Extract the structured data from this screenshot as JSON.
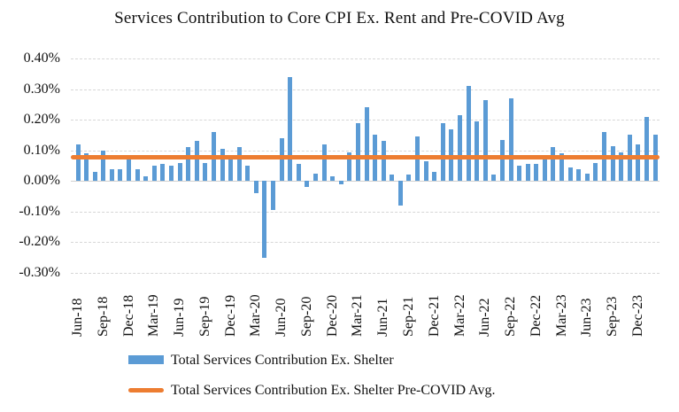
{
  "chart_data": {
    "type": "bar",
    "title": "Services Contribution to Core CPI Ex. Rent and Pre-COVID Avg",
    "categories": [
      "Jun-18",
      "Jul-18",
      "Aug-18",
      "Sep-18",
      "Oct-18",
      "Nov-18",
      "Dec-18",
      "Jan-19",
      "Feb-19",
      "Mar-19",
      "Apr-19",
      "May-19",
      "Jun-19",
      "Jul-19",
      "Aug-19",
      "Sep-19",
      "Oct-19",
      "Nov-19",
      "Dec-19",
      "Jan-20",
      "Feb-20",
      "Mar-20",
      "Apr-20",
      "May-20",
      "Jun-20",
      "Jul-20",
      "Aug-20",
      "Sep-20",
      "Oct-20",
      "Nov-20",
      "Dec-20",
      "Jan-21",
      "Feb-21",
      "Mar-21",
      "Apr-21",
      "May-21",
      "Jun-21",
      "Jul-21",
      "Aug-21",
      "Sep-21",
      "Oct-21",
      "Nov-21",
      "Dec-21",
      "Jan-22",
      "Feb-22",
      "Mar-22",
      "Apr-22",
      "May-22",
      "Jun-22",
      "Jul-22",
      "Aug-22",
      "Sep-22",
      "Oct-22",
      "Nov-22",
      "Dec-22",
      "Jan-23",
      "Feb-23",
      "Mar-23",
      "Apr-23",
      "May-23",
      "Jun-23",
      "Jul-23",
      "Aug-23",
      "Sep-23",
      "Oct-23",
      "Nov-23",
      "Dec-23",
      "Jan-24",
      "Feb-24"
    ],
    "series": [
      {
        "name": "Total Services Contribution Ex. Shelter",
        "type": "bar",
        "color": "#5B9BD5",
        "unit": "%",
        "values": [
          0.12,
          0.09,
          0.03,
          0.1,
          0.04,
          0.04,
          0.07,
          0.04,
          0.015,
          0.05,
          0.055,
          0.05,
          0.06,
          0.11,
          0.13,
          0.06,
          0.16,
          0.105,
          0.07,
          0.11,
          0.05,
          -0.04,
          -0.25,
          -0.095,
          0.14,
          0.34,
          0.055,
          -0.02,
          0.025,
          0.12,
          0.015,
          -0.01,
          0.095,
          0.19,
          0.24,
          0.15,
          0.13,
          0.02,
          -0.08,
          0.02,
          0.145,
          0.065,
          0.03,
          0.19,
          0.17,
          0.215,
          0.31,
          0.195,
          0.265,
          0.02,
          0.135,
          0.27,
          0.05,
          0.055,
          0.055,
          0.085,
          0.11,
          0.09,
          0.045,
          0.04,
          0.025,
          0.06,
          0.16,
          0.115,
          0.095,
          0.15,
          0.12,
          0.21,
          0.15
        ]
      },
      {
        "name": "Total Services Contribution Ex. Shelter Pre-COVID Avg.",
        "type": "line",
        "color": "#ED7D31",
        "unit": "%",
        "value": 0.078
      }
    ],
    "y_axis": {
      "tick_labels": [
        "0.40%",
        "0.30%",
        "0.20%",
        "0.10%",
        "0.00%",
        "-0.10%",
        "-0.20%",
        "-0.30%"
      ],
      "tick_values": [
        0.4,
        0.3,
        0.2,
        0.1,
        0.0,
        -0.1,
        -0.2,
        -0.3
      ],
      "min": -0.3,
      "max": 0.4
    },
    "x_axis": {
      "tick_labels": [
        "Jun-18",
        "Sep-18",
        "Dec-18",
        "Mar-19",
        "Jun-19",
        "Sep-19",
        "Dec-19",
        "Mar-20",
        "Jun-20",
        "Sep-20",
        "Dec-20",
        "Mar-21",
        "Jun-21",
        "Sep-21",
        "Dec-21",
        "Mar-22",
        "Jun-22",
        "Sep-22",
        "Dec-22",
        "Mar-23",
        "Jun-23",
        "Sep-23",
        "Dec-23"
      ],
      "label_every_n_months": 3,
      "label_rotation_deg": -90
    },
    "grid": true,
    "legend_position": "bottom"
  },
  "legend": {
    "items": [
      {
        "label": "Total Services Contribution Ex. Shelter",
        "swatch": "bar",
        "color": "#5B9BD5"
      },
      {
        "label": "Total Services Contribution Ex. Shelter Pre-COVID Avg.",
        "swatch": "line",
        "color": "#ED7D31"
      }
    ]
  },
  "colors": {
    "bar_blue": "#5B9BD5",
    "line_orange": "#ED7D31",
    "gridline_gray": "#D6D6D6",
    "background": "#FFFFFF",
    "text": "#111111"
  }
}
